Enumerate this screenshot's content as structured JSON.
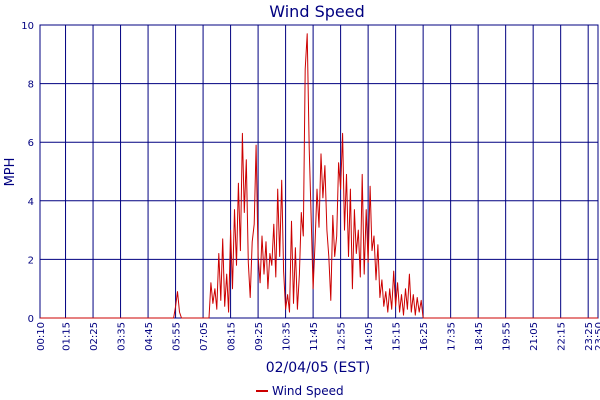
{
  "chart_data": {
    "type": "line",
    "title": "Wind Speed",
    "xlabel": "02/04/05 (EST)",
    "ylabel": "MPH",
    "ylim": [
      0,
      10
    ],
    "yticks": [
      0,
      2,
      4,
      6,
      8,
      10
    ],
    "xlim": [
      "00:10",
      "23:50"
    ],
    "x_tick_labels": [
      "00:10",
      "01:15",
      "02:25",
      "03:35",
      "04:45",
      "05:55",
      "07:05",
      "08:15",
      "09:25",
      "10:35",
      "11:45",
      "12:55",
      "14:05",
      "15:15",
      "16:25",
      "17:35",
      "18:45",
      "19:55",
      "21:05",
      "22:15",
      "23:25",
      "23:50"
    ],
    "grid": true,
    "legend": "bottom-center",
    "colors": {
      "series": "#cc0000",
      "grid": "#000080",
      "text": "#000080"
    },
    "series": [
      {
        "name": "Wind Speed",
        "points": [
          [
            "00:10",
            0
          ],
          [
            "05:50",
            0
          ],
          [
            "05:55",
            0.4
          ],
          [
            "06:00",
            0.9
          ],
          [
            "06:05",
            0.2
          ],
          [
            "06:10",
            0
          ],
          [
            "07:20",
            0
          ],
          [
            "07:25",
            1.2
          ],
          [
            "07:30",
            0.5
          ],
          [
            "07:35",
            1.0
          ],
          [
            "07:40",
            0.3
          ],
          [
            "07:45",
            2.2
          ],
          [
            "07:50",
            0.6
          ],
          [
            "07:55",
            2.7
          ],
          [
            "08:00",
            0.4
          ],
          [
            "08:05",
            1.5
          ],
          [
            "08:10",
            0.2
          ],
          [
            "08:15",
            3.0
          ],
          [
            "08:20",
            1.0
          ],
          [
            "08:25",
            3.7
          ],
          [
            "08:30",
            1.8
          ],
          [
            "08:35",
            4.6
          ],
          [
            "08:40",
            2.3
          ],
          [
            "08:45",
            6.3
          ],
          [
            "08:50",
            3.6
          ],
          [
            "08:55",
            5.4
          ],
          [
            "09:00",
            1.9
          ],
          [
            "09:05",
            0.7
          ],
          [
            "09:10",
            2.6
          ],
          [
            "09:15",
            3.2
          ],
          [
            "09:20",
            5.9
          ],
          [
            "09:25",
            2.1
          ],
          [
            "09:30",
            1.2
          ],
          [
            "09:35",
            2.8
          ],
          [
            "09:40",
            1.5
          ],
          [
            "09:45",
            2.6
          ],
          [
            "09:50",
            1.0
          ],
          [
            "09:55",
            2.2
          ],
          [
            "10:00",
            1.8
          ],
          [
            "10:05",
            3.2
          ],
          [
            "10:10",
            1.4
          ],
          [
            "10:15",
            4.4
          ],
          [
            "10:20",
            2.1
          ],
          [
            "10:25",
            4.7
          ],
          [
            "10:30",
            1.6
          ],
          [
            "10:35",
            0.3
          ],
          [
            "10:40",
            0.8
          ],
          [
            "10:45",
            0.2
          ],
          [
            "10:50",
            3.3
          ],
          [
            "10:55",
            0.5
          ],
          [
            "11:00",
            2.4
          ],
          [
            "11:05",
            0.3
          ],
          [
            "11:10",
            1.5
          ],
          [
            "11:15",
            3.6
          ],
          [
            "11:20",
            2.8
          ],
          [
            "11:25",
            8.5
          ],
          [
            "11:30",
            9.7
          ],
          [
            "11:35",
            5.8
          ],
          [
            "11:40",
            3.5
          ],
          [
            "11:45",
            1.0
          ],
          [
            "11:50",
            2.6
          ],
          [
            "11:55",
            4.4
          ],
          [
            "12:00",
            3.1
          ],
          [
            "12:05",
            5.6
          ],
          [
            "12:10",
            4.1
          ],
          [
            "12:15",
            5.2
          ],
          [
            "12:20",
            3.0
          ],
          [
            "12:25",
            2.1
          ],
          [
            "12:30",
            0.6
          ],
          [
            "12:35",
            3.5
          ],
          [
            "12:40",
            2.1
          ],
          [
            "12:45",
            2.8
          ],
          [
            "12:50",
            5.3
          ],
          [
            "12:55",
            4.4
          ],
          [
            "13:00",
            6.3
          ],
          [
            "13:05",
            3.0
          ],
          [
            "13:10",
            4.9
          ],
          [
            "13:15",
            2.1
          ],
          [
            "13:20",
            4.4
          ],
          [
            "13:25",
            1.0
          ],
          [
            "13:30",
            3.7
          ],
          [
            "13:35",
            2.2
          ],
          [
            "13:40",
            3.0
          ],
          [
            "13:45",
            1.4
          ],
          [
            "13:50",
            4.9
          ],
          [
            "13:55",
            1.5
          ],
          [
            "14:00",
            3.7
          ],
          [
            "14:05",
            1.9
          ],
          [
            "14:10",
            4.5
          ],
          [
            "14:15",
            2.3
          ],
          [
            "14:20",
            2.8
          ],
          [
            "14:25",
            1.3
          ],
          [
            "14:30",
            2.5
          ],
          [
            "14:35",
            0.7
          ],
          [
            "14:40",
            1.3
          ],
          [
            "14:45",
            0.4
          ],
          [
            "14:50",
            0.9
          ],
          [
            "14:55",
            0.2
          ],
          [
            "15:00",
            1.0
          ],
          [
            "15:05",
            0.3
          ],
          [
            "15:10",
            1.6
          ],
          [
            "15:15",
            0.4
          ],
          [
            "15:20",
            1.2
          ],
          [
            "15:25",
            0.2
          ],
          [
            "15:30",
            0.8
          ],
          [
            "15:35",
            0.1
          ],
          [
            "15:40",
            1.0
          ],
          [
            "15:45",
            0.3
          ],
          [
            "15:50",
            1.5
          ],
          [
            "15:55",
            0.2
          ],
          [
            "16:00",
            0.8
          ],
          [
            "16:05",
            0.1
          ],
          [
            "16:10",
            0.7
          ],
          [
            "16:15",
            0.2
          ],
          [
            "16:20",
            0.6
          ],
          [
            "16:25",
            0
          ],
          [
            "23:50",
            0
          ]
        ]
      }
    ]
  }
}
